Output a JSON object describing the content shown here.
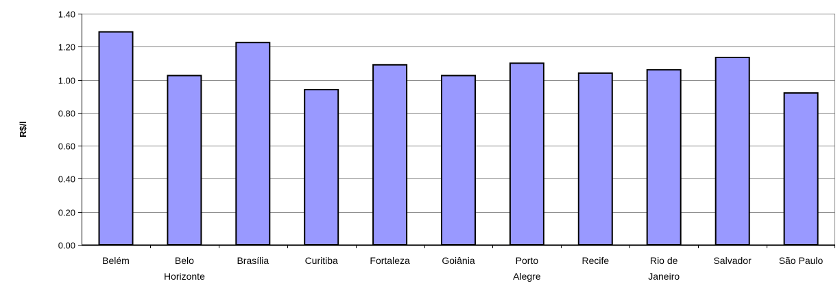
{
  "chart_data": {
    "type": "bar",
    "title": "",
    "xlabel": "",
    "ylabel": "R$/l",
    "ylim": [
      0,
      1.4
    ],
    "yticks": [
      "0.00",
      "0.20",
      "0.40",
      "0.60",
      "0.80",
      "1.00",
      "1.20",
      "1.40"
    ],
    "grid": true,
    "legend": "none",
    "bar_color": "#9999FF",
    "categories": [
      [
        "Belém"
      ],
      [
        "Belo",
        "Horizonte"
      ],
      [
        "Brasília"
      ],
      [
        "Curitiba"
      ],
      [
        "Fortaleza"
      ],
      [
        "Goiânia"
      ],
      [
        "Porto",
        "Alegre"
      ],
      [
        "Recife"
      ],
      [
        "Rio de",
        "Janeiro"
      ],
      [
        "Salvador"
      ],
      [
        "São Paulo"
      ]
    ],
    "values": [
      1.29,
      1.025,
      1.225,
      0.94,
      1.09,
      1.025,
      1.1,
      1.04,
      1.06,
      1.135,
      0.92
    ]
  }
}
